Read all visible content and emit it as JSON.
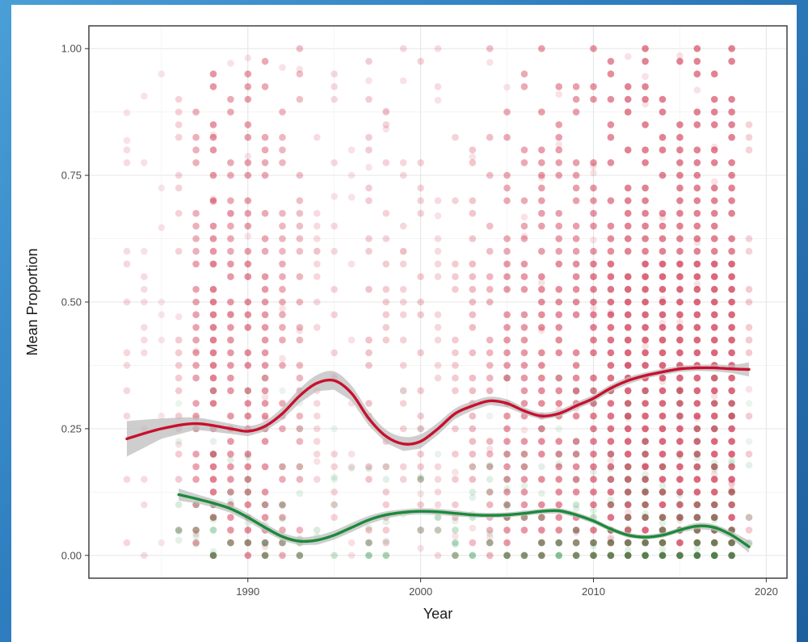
{
  "chart_data": {
    "type": "scatter",
    "title": "",
    "xlabel": "Year",
    "ylabel": "Mean Proportion",
    "xlim": [
      1980.8,
      2021.2
    ],
    "ylim": [
      -0.045,
      1.045
    ],
    "x_ticks": [
      1990,
      2000,
      2010,
      2020
    ],
    "x_tick_labels": [
      "1990",
      "2000",
      "2010",
      "2020"
    ],
    "y_ticks": [
      0.0,
      0.25,
      0.5,
      0.75,
      1.0
    ],
    "y_tick_labels": [
      "0.00",
      "0.25",
      "0.50",
      "0.75",
      "1.00"
    ],
    "grid": true,
    "legend": "none",
    "colors": {
      "red_series": "#c8102e",
      "green_series": "#1a8a3a",
      "confidence_band": "#bdbdbd",
      "panel_border": "#333333",
      "grid": "#ebebeb"
    },
    "series": [
      {
        "color": "#c8102e",
        "years": [
          1983,
          1984,
          1985,
          1986,
          1987,
          1988,
          1989,
          1990,
          1991,
          1992,
          1993,
          1994,
          1995,
          1996,
          1997,
          1998,
          1999,
          2000,
          2001,
          2002,
          2003,
          2004,
          2005,
          2006,
          2007,
          2008,
          2009,
          2010,
          2011,
          2012,
          2013,
          2014,
          2015,
          2016,
          2017,
          2018,
          2019
        ],
        "point_density": [
          0.4,
          0.35,
          0.25,
          0.5,
          0.75,
          0.9,
          0.8,
          0.85,
          0.8,
          0.7,
          0.65,
          0.4,
          0.45,
          0.3,
          0.55,
          0.5,
          0.45,
          0.5,
          0.4,
          0.5,
          0.6,
          0.65,
          0.8,
          0.8,
          0.85,
          0.85,
          0.85,
          0.9,
          0.95,
          1,
          1,
          1,
          1,
          1,
          1,
          1,
          0.5
        ],
        "smooth": {
          "x": [
            1983,
            1985,
            1987,
            1989,
            1990,
            1991,
            1992,
            1993,
            1994,
            1995,
            1996,
            1997,
            1998,
            1999,
            2000,
            2001,
            2002,
            2003,
            2004,
            2005,
            2006,
            2007,
            2008,
            2009,
            2010,
            2011,
            2012,
            2013,
            2014,
            2015,
            2016,
            2017,
            2018,
            2019
          ],
          "y": [
            0.23,
            0.25,
            0.26,
            0.25,
            0.245,
            0.255,
            0.28,
            0.315,
            0.34,
            0.345,
            0.32,
            0.27,
            0.235,
            0.22,
            0.225,
            0.25,
            0.28,
            0.295,
            0.305,
            0.3,
            0.285,
            0.275,
            0.28,
            0.295,
            0.31,
            0.33,
            0.345,
            0.355,
            0.362,
            0.368,
            0.37,
            0.37,
            0.368,
            0.367
          ],
          "band_half_width": [
            0.035,
            0.02,
            0.012,
            0.01,
            0.01,
            0.01,
            0.012,
            0.014,
            0.016,
            0.018,
            0.015,
            0.014,
            0.013,
            0.014,
            0.014,
            0.012,
            0.01,
            0.009,
            0.008,
            0.008,
            0.007,
            0.007,
            0.007,
            0.007,
            0.007,
            0.007,
            0.007,
            0.006,
            0.006,
            0.006,
            0.006,
            0.007,
            0.008,
            0.014
          ]
        }
      },
      {
        "color": "#1a8a3a",
        "years": [
          1986,
          1987,
          1988,
          1989,
          1990,
          1991,
          1992,
          1993,
          1994,
          1995,
          1996,
          1997,
          1998,
          1999,
          2000,
          2001,
          2002,
          2003,
          2004,
          2005,
          2006,
          2007,
          2008,
          2009,
          2010,
          2011,
          2012,
          2013,
          2014,
          2015,
          2016,
          2017,
          2018,
          2019
        ],
        "point_density": [
          0.4,
          0.5,
          0.6,
          0.5,
          0.55,
          0.5,
          0.45,
          0.45,
          0.2,
          0.2,
          0.2,
          0.45,
          0.4,
          0.35,
          0.4,
          0.35,
          0.4,
          0.45,
          0.5,
          0.55,
          0.55,
          0.55,
          0.6,
          0.6,
          0.65,
          0.7,
          0.75,
          0.8,
          0.8,
          0.8,
          0.85,
          0.85,
          0.8,
          0.3
        ],
        "smooth": {
          "x": [
            1986,
            1987,
            1988,
            1989,
            1990,
            1991,
            1992,
            1993,
            1994,
            1995,
            1996,
            1997,
            1998,
            1999,
            2000,
            2001,
            2002,
            2003,
            2004,
            2005,
            2006,
            2007,
            2008,
            2009,
            2010,
            2011,
            2012,
            2013,
            2014,
            2015,
            2016,
            2017,
            2018,
            2019
          ],
          "y": [
            0.12,
            0.112,
            0.103,
            0.092,
            0.075,
            0.055,
            0.037,
            0.028,
            0.03,
            0.04,
            0.055,
            0.07,
            0.08,
            0.085,
            0.087,
            0.086,
            0.083,
            0.08,
            0.079,
            0.08,
            0.083,
            0.087,
            0.088,
            0.08,
            0.068,
            0.052,
            0.04,
            0.036,
            0.04,
            0.05,
            0.058,
            0.055,
            0.04,
            0.017
          ],
          "band_half_width": [
            0.012,
            0.009,
            0.008,
            0.008,
            0.008,
            0.008,
            0.008,
            0.008,
            0.009,
            0.009,
            0.009,
            0.008,
            0.007,
            0.006,
            0.006,
            0.006,
            0.006,
            0.005,
            0.005,
            0.005,
            0.005,
            0.005,
            0.005,
            0.005,
            0.005,
            0.005,
            0.005,
            0.005,
            0.005,
            0.005,
            0.006,
            0.006,
            0.007,
            0.012
          ]
        }
      }
    ]
  }
}
